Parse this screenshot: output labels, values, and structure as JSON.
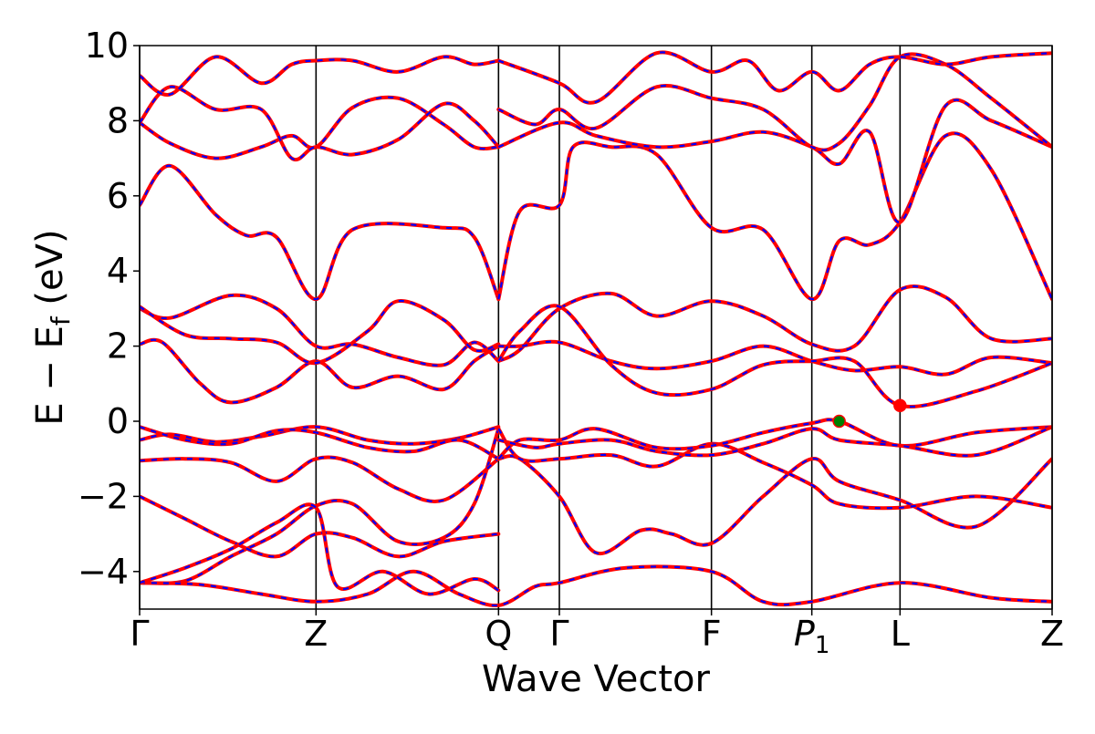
{
  "chart_data": {
    "type": "line",
    "title": "",
    "xlabel": "Wave Vector",
    "ylabel_main": "E − E",
    "ylabel_sub": "f",
    "ylabel_unit": " (eV)",
    "ylim": [
      -5,
      10
    ],
    "yticks": [
      {
        "value": 10,
        "label": "10"
      },
      {
        "value": 8,
        "label": "8"
      },
      {
        "value": 6,
        "label": "6"
      },
      {
        "value": 4,
        "label": "4"
      },
      {
        "value": 2,
        "label": "2"
      },
      {
        "value": 0,
        "label": "0"
      },
      {
        "value": -2,
        "label": "−2"
      },
      {
        "value": -4,
        "label": "−4"
      }
    ],
    "xlim": [
      0,
      6.0
    ],
    "kpoints": [
      {
        "pos": 0.0,
        "label": "Γ"
      },
      {
        "pos": 1.16,
        "label": "Z"
      },
      {
        "pos": 2.36,
        "label": "Q"
      },
      {
        "pos": 2.76,
        "label": "Γ"
      },
      {
        "pos": 3.76,
        "label": "F"
      },
      {
        "pos": 4.42,
        "label": "P",
        "sub": "1"
      },
      {
        "pos": 5.0,
        "label": "L"
      },
      {
        "pos": 6.0,
        "label": "Z"
      }
    ],
    "series_styles": {
      "red": {
        "color": "#ff0000",
        "width": 4
      },
      "blue": {
        "color": "#0000ff",
        "width": 2.2,
        "dash": "6,7"
      }
    },
    "markers": [
      {
        "x": 4.6,
        "y": 0.0,
        "color": "#008000",
        "role": "vbm"
      },
      {
        "x": 5.0,
        "y": 0.42,
        "color": "#ff0000",
        "role": "cbm"
      }
    ],
    "bands": [
      [
        [
          0,
          -4.3
        ],
        [
          0.3,
          -4.25
        ],
        [
          0.6,
          -3.6
        ],
        [
          0.9,
          -3.0
        ],
        [
          1.16,
          -2.25
        ],
        [
          1.4,
          -2.2
        ],
        [
          1.7,
          -3.2
        ],
        [
          2.0,
          -3.1
        ],
        [
          2.2,
          -2.2
        ],
        [
          2.36,
          -0.2
        ]
      ],
      [
        [
          0,
          -2.0
        ],
        [
          0.3,
          -2.6
        ],
        [
          0.6,
          -3.2
        ],
        [
          0.9,
          -3.6
        ],
        [
          1.16,
          -3.0
        ],
        [
          1.4,
          -3.1
        ],
        [
          1.7,
          -3.6
        ],
        [
          2.0,
          -3.2
        ],
        [
          2.36,
          -3.0
        ]
      ],
      [
        [
          0,
          -1.05
        ],
        [
          0.3,
          -1.0
        ],
        [
          0.6,
          -1.1
        ],
        [
          0.9,
          -1.6
        ],
        [
          1.16,
          -1.0
        ],
        [
          1.4,
          -1.1
        ],
        [
          1.7,
          -1.8
        ],
        [
          2.0,
          -2.1
        ],
        [
          2.36,
          -1.0
        ]
      ],
      [
        [
          0,
          -0.5
        ],
        [
          0.2,
          -0.35
        ],
        [
          0.5,
          -0.55
        ],
        [
          0.8,
          -0.4
        ],
        [
          1.16,
          -0.15
        ],
        [
          1.5,
          -0.5
        ],
        [
          1.8,
          -0.6
        ],
        [
          2.1,
          -0.45
        ],
        [
          2.36,
          -0.15
        ]
      ],
      [
        [
          0,
          -0.15
        ],
        [
          0.3,
          -0.5
        ],
        [
          0.6,
          -0.6
        ],
        [
          0.9,
          -0.25
        ],
        [
          1.16,
          -0.3
        ],
        [
          1.5,
          -0.7
        ],
        [
          1.8,
          -0.8
        ],
        [
          2.1,
          -0.5
        ],
        [
          2.36,
          -1.0
        ]
      ],
      [
        [
          0,
          2.05
        ],
        [
          0.15,
          2.1
        ],
        [
          0.4,
          1.0
        ],
        [
          0.6,
          0.5
        ],
        [
          0.9,
          0.9
        ],
        [
          1.16,
          1.6
        ],
        [
          1.4,
          0.9
        ],
        [
          1.7,
          1.2
        ],
        [
          2.0,
          0.85
        ],
        [
          2.2,
          1.6
        ],
        [
          2.36,
          2.0
        ]
      ],
      [
        [
          0,
          3.0
        ],
        [
          0.2,
          2.75
        ],
        [
          0.6,
          3.35
        ],
        [
          0.9,
          3.0
        ],
        [
          1.16,
          2.0
        ],
        [
          1.4,
          2.05
        ],
        [
          1.7,
          1.7
        ],
        [
          2.0,
          1.5
        ],
        [
          2.2,
          2.1
        ],
        [
          2.36,
          1.6
        ]
      ],
      [
        [
          0,
          3.05
        ],
        [
          0.3,
          2.3
        ],
        [
          0.6,
          2.2
        ],
        [
          0.9,
          2.1
        ],
        [
          1.16,
          1.55
        ],
        [
          1.5,
          2.4
        ],
        [
          1.7,
          3.2
        ],
        [
          2.0,
          2.7
        ],
        [
          2.2,
          1.9
        ],
        [
          2.36,
          2.05
        ]
      ],
      [
        [
          0,
          5.75
        ],
        [
          0.2,
          6.8
        ],
        [
          0.5,
          5.5
        ],
        [
          0.7,
          4.95
        ],
        [
          0.9,
          4.9
        ],
        [
          1.16,
          3.25
        ],
        [
          1.4,
          5.1
        ],
        [
          2.0,
          5.15
        ],
        [
          2.2,
          4.9
        ],
        [
          2.36,
          3.25
        ]
      ],
      [
        [
          0,
          7.95
        ],
        [
          0.2,
          7.4
        ],
        [
          0.5,
          7.0
        ],
        [
          0.8,
          7.3
        ],
        [
          1.0,
          7.6
        ],
        [
          1.16,
          7.3
        ],
        [
          1.4,
          8.35
        ],
        [
          1.7,
          8.6
        ],
        [
          2.0,
          7.9
        ],
        [
          2.2,
          7.3
        ],
        [
          2.36,
          7.3
        ]
      ],
      [
        [
          0,
          7.95
        ],
        [
          0.2,
          8.9
        ],
        [
          0.5,
          8.3
        ],
        [
          0.8,
          8.3
        ],
        [
          1.0,
          7.0
        ],
        [
          1.16,
          7.3
        ],
        [
          1.4,
          7.1
        ],
        [
          1.7,
          7.5
        ],
        [
          2.0,
          8.45
        ],
        [
          2.2,
          8.0
        ],
        [
          2.36,
          7.3
        ]
      ],
      [
        [
          0,
          9.2
        ],
        [
          0.2,
          8.7
        ],
        [
          0.5,
          9.7
        ],
        [
          0.8,
          9.0
        ],
        [
          1.0,
          9.5
        ],
        [
          1.16,
          9.6
        ],
        [
          1.4,
          9.6
        ],
        [
          1.7,
          9.3
        ],
        [
          2.0,
          9.7
        ],
        [
          2.2,
          9.5
        ],
        [
          2.36,
          9.6
        ]
      ],
      [
        [
          2.36,
          -1.0
        ],
        [
          2.5,
          -1.0
        ],
        [
          2.76,
          -2.0
        ],
        [
          3.0,
          -3.5
        ],
        [
          3.3,
          -2.9
        ],
        [
          3.5,
          -3.0
        ],
        [
          3.76,
          -3.25
        ],
        [
          4.1,
          -2.0
        ],
        [
          4.42,
          -1.0
        ],
        [
          4.6,
          -1.6
        ],
        [
          5.0,
          -2.1
        ],
        [
          5.5,
          -2.8
        ],
        [
          6.0,
          -1.0
        ]
      ],
      [
        [
          2.36,
          -0.2
        ],
        [
          2.5,
          -1.0
        ],
        [
          2.76,
          -1.0
        ],
        [
          3.1,
          -0.9
        ],
        [
          3.4,
          -1.2
        ],
        [
          3.76,
          -0.6
        ],
        [
          4.1,
          -1.1
        ],
        [
          4.42,
          -1.7
        ],
        [
          4.6,
          -2.2
        ],
        [
          5.0,
          -2.3
        ],
        [
          5.5,
          -2.0
        ],
        [
          6.0,
          -2.3
        ]
      ],
      [
        [
          2.36,
          -1.0
        ],
        [
          2.5,
          -0.5
        ],
        [
          2.76,
          -0.5
        ],
        [
          3.0,
          -0.2
        ],
        [
          3.4,
          -0.7
        ],
        [
          3.76,
          -0.65
        ],
        [
          4.1,
          -0.3
        ],
        [
          4.42,
          -0.05
        ],
        [
          4.6,
          0.0
        ],
        [
          5.0,
          -0.65
        ],
        [
          5.5,
          -0.3
        ],
        [
          6.0,
          -0.15
        ]
      ],
      [
        [
          2.36,
          -0.5
        ],
        [
          2.6,
          -0.7
        ],
        [
          2.76,
          -0.6
        ],
        [
          3.1,
          -0.5
        ],
        [
          3.4,
          -0.8
        ],
        [
          3.76,
          -0.9
        ],
        [
          4.1,
          -0.6
        ],
        [
          4.42,
          -0.2
        ],
        [
          4.6,
          -0.5
        ],
        [
          5.0,
          -0.65
        ],
        [
          5.5,
          -0.9
        ],
        [
          6.0,
          -0.15
        ]
      ],
      [
        [
          2.36,
          1.6
        ],
        [
          2.5,
          1.9
        ],
        [
          2.76,
          3.0
        ],
        [
          3.1,
          3.4
        ],
        [
          3.4,
          2.8
        ],
        [
          3.76,
          3.2
        ],
        [
          4.1,
          2.8
        ],
        [
          4.42,
          2.05
        ],
        [
          4.7,
          2.0
        ],
        [
          5.0,
          3.5
        ],
        [
          5.3,
          3.3
        ],
        [
          5.6,
          2.2
        ],
        [
          6.0,
          2.2
        ]
      ],
      [
        [
          2.36,
          2.0
        ],
        [
          2.5,
          2.0
        ],
        [
          2.76,
          2.1
        ],
        [
          3.1,
          1.6
        ],
        [
          3.4,
          1.4
        ],
        [
          3.76,
          1.6
        ],
        [
          4.1,
          2.0
        ],
        [
          4.42,
          1.6
        ],
        [
          4.7,
          1.35
        ],
        [
          5.0,
          1.45
        ],
        [
          5.3,
          1.25
        ],
        [
          5.6,
          1.7
        ],
        [
          6.0,
          1.55
        ]
      ],
      [
        [
          2.36,
          1.6
        ],
        [
          2.5,
          2.4
        ],
        [
          2.76,
          3.05
        ],
        [
          3.1,
          1.5
        ],
        [
          3.4,
          0.75
        ],
        [
          3.76,
          0.85
        ],
        [
          4.1,
          1.5
        ],
        [
          4.42,
          1.6
        ],
        [
          4.7,
          1.6
        ],
        [
          5.0,
          0.42
        ],
        [
          5.5,
          0.8
        ],
        [
          6.0,
          1.55
        ]
      ],
      [
        [
          2.36,
          3.25
        ],
        [
          2.5,
          5.6
        ],
        [
          2.76,
          5.75
        ],
        [
          2.85,
          7.3
        ],
        [
          3.1,
          7.3
        ],
        [
          3.4,
          7.1
        ],
        [
          3.76,
          5.15
        ],
        [
          4.1,
          5.1
        ],
        [
          4.42,
          3.25
        ],
        [
          4.6,
          4.8
        ],
        [
          4.8,
          4.7
        ],
        [
          5.0,
          5.3
        ],
        [
          5.3,
          7.6
        ],
        [
          5.6,
          6.7
        ],
        [
          6.0,
          3.25
        ]
      ],
      [
        [
          2.36,
          7.3
        ],
        [
          2.76,
          7.95
        ],
        [
          3.0,
          7.6
        ],
        [
          3.4,
          7.3
        ],
        [
          3.76,
          7.45
        ],
        [
          4.1,
          7.7
        ],
        [
          4.42,
          7.3
        ],
        [
          4.6,
          6.85
        ],
        [
          4.8,
          7.7
        ],
        [
          5.0,
          5.3
        ],
        [
          5.3,
          8.4
        ],
        [
          5.6,
          8.0
        ],
        [
          6.0,
          7.3
        ]
      ],
      [
        [
          2.36,
          8.3
        ],
        [
          2.6,
          7.9
        ],
        [
          2.76,
          8.3
        ],
        [
          3.0,
          7.8
        ],
        [
          3.4,
          8.9
        ],
        [
          3.76,
          8.6
        ],
        [
          4.1,
          8.3
        ],
        [
          4.42,
          7.3
        ],
        [
          4.6,
          7.4
        ],
        [
          4.8,
          8.4
        ],
        [
          5.0,
          9.7
        ],
        [
          5.3,
          9.5
        ],
        [
          5.6,
          8.6
        ],
        [
          6.0,
          7.3
        ]
      ],
      [
        [
          2.36,
          9.6
        ],
        [
          2.76,
          9.0
        ],
        [
          3.0,
          8.5
        ],
        [
          3.4,
          9.8
        ],
        [
          3.76,
          9.3
        ],
        [
          4.0,
          9.6
        ],
        [
          4.2,
          8.8
        ],
        [
          4.42,
          9.3
        ],
        [
          4.6,
          8.8
        ],
        [
          4.8,
          9.5
        ],
        [
          5.0,
          9.7
        ],
        [
          5.3,
          9.5
        ],
        [
          5.6,
          9.7
        ],
        [
          6.0,
          9.8
        ]
      ],
      [
        [
          0,
          -4.3
        ],
        [
          0.4,
          -4.35
        ],
        [
          0.8,
          -4.6
        ],
        [
          1.16,
          -4.8
        ],
        [
          1.5,
          -4.6
        ],
        [
          1.8,
          -4.0
        ],
        [
          2.1,
          -4.6
        ],
        [
          2.36,
          -4.9
        ],
        [
          2.6,
          -4.4
        ],
        [
          2.76,
          -4.3
        ],
        [
          3.2,
          -3.9
        ],
        [
          3.76,
          -4.0
        ],
        [
          4.1,
          -4.8
        ],
        [
          4.42,
          -4.8
        ],
        [
          5.0,
          -4.3
        ],
        [
          5.6,
          -4.7
        ],
        [
          6.0,
          -4.8
        ]
      ],
      [
        [
          0,
          -4.3
        ],
        [
          0.3,
          -3.9
        ],
        [
          0.6,
          -3.4
        ],
        [
          0.9,
          -2.7
        ],
        [
          1.16,
          -2.3
        ],
        [
          1.3,
          -4.4
        ],
        [
          1.6,
          -4.0
        ],
        [
          1.9,
          -4.6
        ],
        [
          2.2,
          -4.2
        ],
        [
          2.36,
          -4.5
        ]
      ]
    ]
  }
}
